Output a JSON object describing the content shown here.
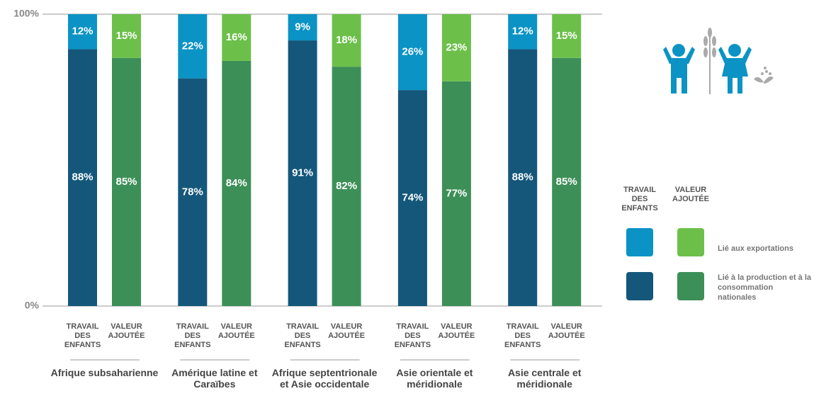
{
  "chart_data": {
    "type": "stacked-grouped-bar",
    "categories": [
      "Afrique subsaharienne",
      "Amérique latine et Caraïbes",
      "Afrique septentrionale et Asie occidentale",
      "Asie orientale et méridionale",
      "Asie centrale et méridionale"
    ],
    "ylim": [
      0,
      100
    ],
    "yticks": [
      {
        "value": 0,
        "label": "0%"
      },
      {
        "value": 100,
        "label": "100%"
      }
    ],
    "series": [
      {
        "name": "TRAVAIL DES ENFANTS",
        "segments": [
          {
            "name": "Lié à la production et à la consommation nationales",
            "color": "#14577a",
            "values": [
              88,
              78,
              91,
              74,
              88
            ],
            "value_labels": [
              "88%",
              "78%",
              "91%",
              "74%",
              "88%"
            ]
          },
          {
            "name": "Lié aux exportations",
            "color": "#0b93c5",
            "values": [
              12,
              22,
              9,
              26,
              12
            ],
            "value_labels": [
              "12%",
              "22%",
              "9%",
              "26%",
              "12%"
            ]
          }
        ]
      },
      {
        "name": "VALEUR AJOUTÉE",
        "segments": [
          {
            "name": "Lié à la production et à la consommation nationales",
            "color": "#3d8f58",
            "values": [
              85,
              84,
              82,
              77,
              85
            ],
            "value_labels": [
              "85%",
              "84%",
              "82%",
              "77%",
              "85%"
            ]
          },
          {
            "name": "Lié aux exportations",
            "color": "#6cc04a",
            "values": [
              15,
              16,
              18,
              23,
              15
            ],
            "value_labels": [
              "15%",
              "16%",
              "18%",
              "23%",
              "15%"
            ]
          }
        ]
      }
    ]
  }
}
